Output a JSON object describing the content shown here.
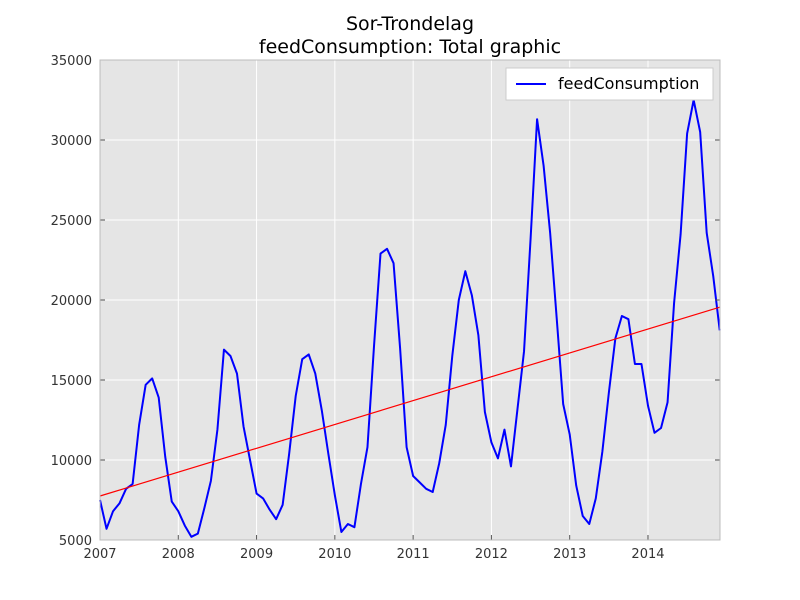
{
  "chart_data": {
    "type": "line",
    "title": "Sor-Trondelag",
    "subtitle": "feedConsumption: Total graphic",
    "xlabel": "",
    "ylabel": "",
    "xlim": [
      2007.0,
      2014.92
    ],
    "ylim": [
      5000,
      35000
    ],
    "x_ticks": [
      2007,
      2008,
      2009,
      2010,
      2011,
      2012,
      2013,
      2014
    ],
    "x_tick_labels": [
      "2007",
      "2008",
      "2009",
      "2010",
      "2011",
      "2012",
      "2013",
      "2014"
    ],
    "y_ticks": [
      5000,
      10000,
      15000,
      20000,
      25000,
      30000,
      35000
    ],
    "y_tick_labels": [
      "5000",
      "10000",
      "15000",
      "20000",
      "25000",
      "30000",
      "35000"
    ],
    "grid": true,
    "background": "#e5e5e5",
    "legend": {
      "placement": "top-right",
      "entries": [
        "feedConsumption"
      ]
    },
    "series": [
      {
        "name": "feedConsumption",
        "color": "#0000ff",
        "x_start": "2007-01",
        "frequency": "monthly",
        "values": [
          7500,
          5700,
          6800,
          7300,
          8200,
          8500,
          12200,
          14700,
          15100,
          13900,
          10200,
          7400,
          6800,
          5900,
          5200,
          5400,
          7000,
          8700,
          11900,
          16900,
          16500,
          15400,
          12100,
          10000,
          7900,
          7600,
          6900,
          6300,
          7200,
          10400,
          14000,
          16300,
          16600,
          15400,
          13100,
          10400,
          7800,
          5500,
          6000,
          5800,
          8500,
          10800,
          17100,
          22900,
          23200,
          22300,
          17000,
          10800,
          9000,
          8600,
          8200,
          8000,
          9800,
          12200,
          16500,
          20000,
          21800,
          20300,
          17800,
          13000,
          11100,
          10100,
          11900,
          9600,
          13200,
          16800,
          23800,
          31300,
          28400,
          24200,
          18900,
          13500,
          11600,
          8400,
          6500,
          6000,
          7600,
          10500,
          14200,
          17600,
          19000,
          18800,
          16000,
          16000,
          13400,
          11700,
          12000,
          13600,
          19800,
          24100,
          30400,
          32500,
          30500,
          24200,
          21500,
          18100
        ]
      },
      {
        "name": "",
        "kind": "trend",
        "color": "#ff0000",
        "x": [
          "2007-01",
          "2014-12"
        ],
        "values": [
          7750,
          19550
        ]
      }
    ]
  }
}
